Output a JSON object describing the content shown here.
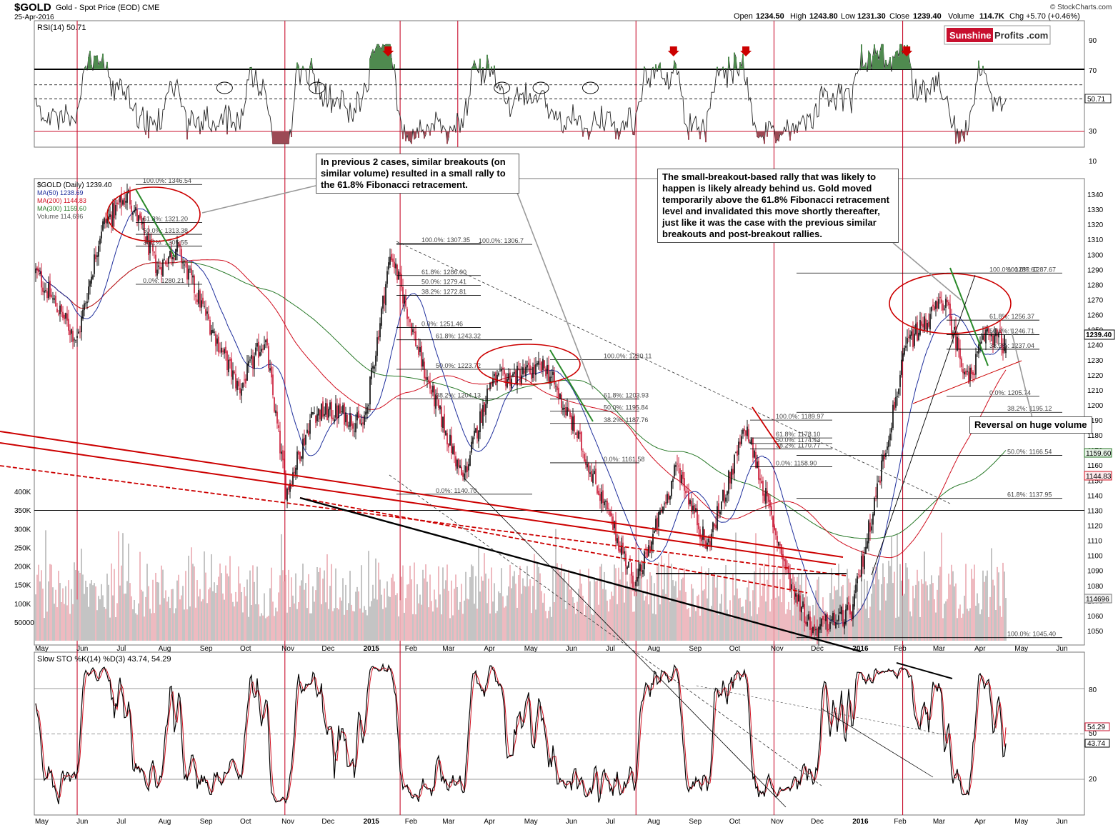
{
  "header": {
    "symbol": "$GOLD",
    "description": "Gold - Spot Price (EOD) CME",
    "date": "25-Apr-2016",
    "open_label": "Open",
    "open": "1234.50",
    "high_label": "High",
    "high": "1243.80",
    "low_label": "Low",
    "low": "1231.30",
    "close_label": "Close",
    "close": "1239.40",
    "volume_label": "Volume",
    "volume": "114.7K",
    "chg_label": "Chg",
    "chg": "+5.70 (+0.46%)",
    "watermark": "© StockCharts.com"
  },
  "logo": {
    "part1": "Sunshine",
    "part2": "Profits",
    "part3": ".com"
  },
  "colors": {
    "up": "#000000",
    "down": "#c8102e",
    "ma50": "#1f2f9c",
    "ma200": "#d01020",
    "ma300": "#2a7a2a",
    "annotation_red": "#cc0000"
  },
  "rsi_panel": {
    "label": "RSI(14) 50.71",
    "current_label": "50.71",
    "levels": [
      90,
      70,
      30,
      10
    ],
    "level_labels": [
      "90",
      "70",
      "30",
      "10"
    ],
    "value": 50.71
  },
  "price_panel": {
    "legend": {
      "title": "$GOLD (Daily) 1239.40",
      "ma50": "MA(50) 1238.69",
      "ma200": "MA(200) 1144.83",
      "ma300": "MA(300) 1159.60",
      "volume": "Volume 114,696"
    },
    "price_ticks": [
      1340,
      1330,
      1320,
      1310,
      1300,
      1290,
      1280,
      1270,
      1260,
      1250,
      1240,
      1230,
      1220,
      1210,
      1200,
      1190,
      1180,
      1170,
      1160,
      1150,
      1140,
      1130,
      1120,
      1110,
      1100,
      1090,
      1080,
      1070,
      1060,
      1050
    ],
    "price_tick_labels": [
      "1340",
      "1330",
      "1320",
      "1310",
      "1300",
      "1290",
      "1280",
      "1270",
      "1260",
      "1250",
      "1240",
      "1230",
      "1220",
      "1210",
      "1200",
      "1190",
      "1180",
      "1170",
      "1160",
      "1150",
      "1140",
      "1130",
      "1120",
      "1110",
      "1100",
      "1090",
      "1080",
      "1070",
      "1060",
      "1050"
    ],
    "volume_ticks": [
      400000,
      350000,
      300000,
      250000,
      200000,
      150000,
      100000,
      50000
    ],
    "volume_tick_labels": [
      "400K",
      "350K",
      "300K",
      "250K",
      "200K",
      "150K",
      "100K",
      "50000"
    ],
    "tags": {
      "close": "1239.40",
      "ma300": "1159.60",
      "ma200": "1144.83",
      "volume": "114696"
    }
  },
  "sto_panel": {
    "label": "Slow STO %K(14) %D(3) 43.74, 54.29",
    "levels": [
      80,
      50,
      20
    ],
    "level_labels": [
      "80",
      "50",
      "20"
    ],
    "k": 43.74,
    "d": 54.29,
    "tags": {
      "d": "54.29",
      "k": "43.74"
    }
  },
  "chart_data": {
    "type": "line",
    "title": "$GOLD Gold - Spot Price (EOD) CME",
    "date_range": [
      "2014-05-01",
      "2016-04-25"
    ],
    "x_labels": [
      "May",
      "Jun",
      "Jul",
      "Aug",
      "Sep",
      "Oct",
      "Nov",
      "Dec",
      "2015",
      "Feb",
      "Mar",
      "Apr",
      "May",
      "Jun",
      "Jul",
      "Aug",
      "Sep",
      "Oct",
      "Nov",
      "Dec",
      "2016",
      "Feb",
      "Mar",
      "Apr",
      "May",
      "Jun"
    ],
    "ohlc_last": {
      "date": "2016-04-25",
      "open": 1234.5,
      "high": 1243.8,
      "low": 1231.3,
      "close": 1239.4,
      "volume": 114700
    },
    "ylim_price": [
      1045,
      1350
    ],
    "approx_close_path": [
      {
        "date": "2014-05-01",
        "close": 1290
      },
      {
        "date": "2014-06-02",
        "close": 1243
      },
      {
        "date": "2014-06-20",
        "close": 1318
      },
      {
        "date": "2014-07-10",
        "close": 1340
      },
      {
        "date": "2014-08-01",
        "close": 1290
      },
      {
        "date": "2014-08-15",
        "close": 1305
      },
      {
        "date": "2014-09-01",
        "close": 1270
      },
      {
        "date": "2014-10-01",
        "close": 1210
      },
      {
        "date": "2014-10-20",
        "close": 1245
      },
      {
        "date": "2014-11-05",
        "close": 1142
      },
      {
        "date": "2014-11-25",
        "close": 1195
      },
      {
        "date": "2014-12-15",
        "close": 1195
      },
      {
        "date": "2015-01-02",
        "close": 1186
      },
      {
        "date": "2015-01-22",
        "close": 1302
      },
      {
        "date": "2015-02-15",
        "close": 1225
      },
      {
        "date": "2015-03-17",
        "close": 1150
      },
      {
        "date": "2015-04-06",
        "close": 1215
      },
      {
        "date": "2015-05-18",
        "close": 1225
      },
      {
        "date": "2015-06-10",
        "close": 1180
      },
      {
        "date": "2015-07-24",
        "close": 1080
      },
      {
        "date": "2015-08-24",
        "close": 1160
      },
      {
        "date": "2015-09-15",
        "close": 1105
      },
      {
        "date": "2015-10-14",
        "close": 1185
      },
      {
        "date": "2015-11-15",
        "close": 1085
      },
      {
        "date": "2015-12-03",
        "close": 1050
      },
      {
        "date": "2016-01-01",
        "close": 1062
      },
      {
        "date": "2016-02-11",
        "close": 1240
      },
      {
        "date": "2016-03-10",
        "close": 1270
      },
      {
        "date": "2016-03-28",
        "close": 1215
      },
      {
        "date": "2016-04-11",
        "close": 1250
      },
      {
        "date": "2016-04-25",
        "close": 1239.4
      }
    ],
    "moving_averages": [
      {
        "name": "MA(50)",
        "last": 1238.69
      },
      {
        "name": "MA(200)",
        "last": 1144.83
      },
      {
        "name": "MA(300)",
        "last": 1159.6
      }
    ],
    "rsi": {
      "period": 14,
      "last": 50.71
    },
    "slow_sto": {
      "k_period": 14,
      "d_period": 3,
      "k_last": 43.74,
      "d_last": 54.29
    },
    "fib_2014": [
      {
        "label": "100.0%: 1346.54",
        "value": 1346.54
      },
      {
        "label": "61.8%: 1321.20",
        "value": 1321.2
      },
      {
        "label": "50.0%: 1313.38",
        "value": 1313.38
      },
      {
        "label": "38.2%: 1305.55",
        "value": 1305.55
      },
      {
        "label": "0.0%: 1280.21",
        "value": 1280.21
      }
    ],
    "fib_2015_jan": [
      {
        "label": "100.0%: 1307.35",
        "value": 1307.35
      },
      {
        "label": "61.8%: 1286.00",
        "value": 1286
      },
      {
        "label": "50.0%: 1279.41",
        "value": 1279.41
      },
      {
        "label": "38.2%: 1272.81",
        "value": 1272.81
      },
      {
        "label": "0.0%: 1251.46",
        "value": 1251.46
      }
    ],
    "fib_2015_jan_long": [
      {
        "label": "100.0%: 1306.7",
        "value": 1306.7
      },
      {
        "label": "61.8%: 1243.32",
        "value": 1243.32
      },
      {
        "label": "50.0%: 1223.72",
        "value": 1223.72
      },
      {
        "label": "38.2%: 1204.13",
        "value": 1204.13
      },
      {
        "label": "0.0%: 1140.70",
        "value": 1140.7
      }
    ],
    "fib_2015_may": [
      {
        "label": "100.0%: 1230.11",
        "value": 1230.11
      },
      {
        "label": "61.8%: 1203.93",
        "value": 1203.93
      },
      {
        "label": "50.0%: 1195.84",
        "value": 1195.84
      },
      {
        "label": "38.2%: 1187.76",
        "value": 1187.76
      },
      {
        "label": "0.0%: 1161.58",
        "value": 1161.58
      }
    ],
    "fib_2015_oct": [
      {
        "label": "100.0%: 1189.97",
        "value": 1189.97
      },
      {
        "label": "61.8%: 1178.10",
        "value": 1178.1
      },
      {
        "label": "50.0%: 1174.43",
        "value": 1174.43
      },
      {
        "label": "38.2%: 1170.77",
        "value": 1170.77
      },
      {
        "label": "0.0%: 1158.90",
        "value": 1158.9
      }
    ],
    "fib_2016_short": [
      {
        "label": "100.0%: 1287.67",
        "value": 1287.67
      },
      {
        "label": "61.8%: 1256.37",
        "value": 1256.37
      },
      {
        "label": "50.0%: 1246.71",
        "value": 1246.71
      },
      {
        "label": "38.2%: 1237.04",
        "value": 1237.04
      },
      {
        "label": "0.0%: 1205.74",
        "value": 1205.74
      }
    ],
    "fib_2016_long": [
      {
        "label": "100.0%: 1287.67",
        "value": 1287.67
      },
      {
        "label": "38.2%: 1195.12",
        "value": 1195.12
      },
      {
        "label": "50.0%: 1166.54",
        "value": 1166.54
      },
      {
        "label": "61.8%: 1137.95",
        "value": 1137.95
      },
      {
        "label": "100.0%: 1045.40",
        "value": 1045.4
      }
    ]
  },
  "annotations": {
    "box1": "In previous 2 cases, similar breakouts (on similar volume) resulted in a small rally to the 61.8% Fibonacci retracement.",
    "box2": "The small-breakout-based rally that was likely to happen is likely already behind us. Gold moved temporarily above the 61.8% Fibonacci retracement level and invalidated this move shortly thereafter, just like it was the case with the previous similar breakouts and post-breakout rallies.",
    "box3": "Reversal on huge volume"
  }
}
